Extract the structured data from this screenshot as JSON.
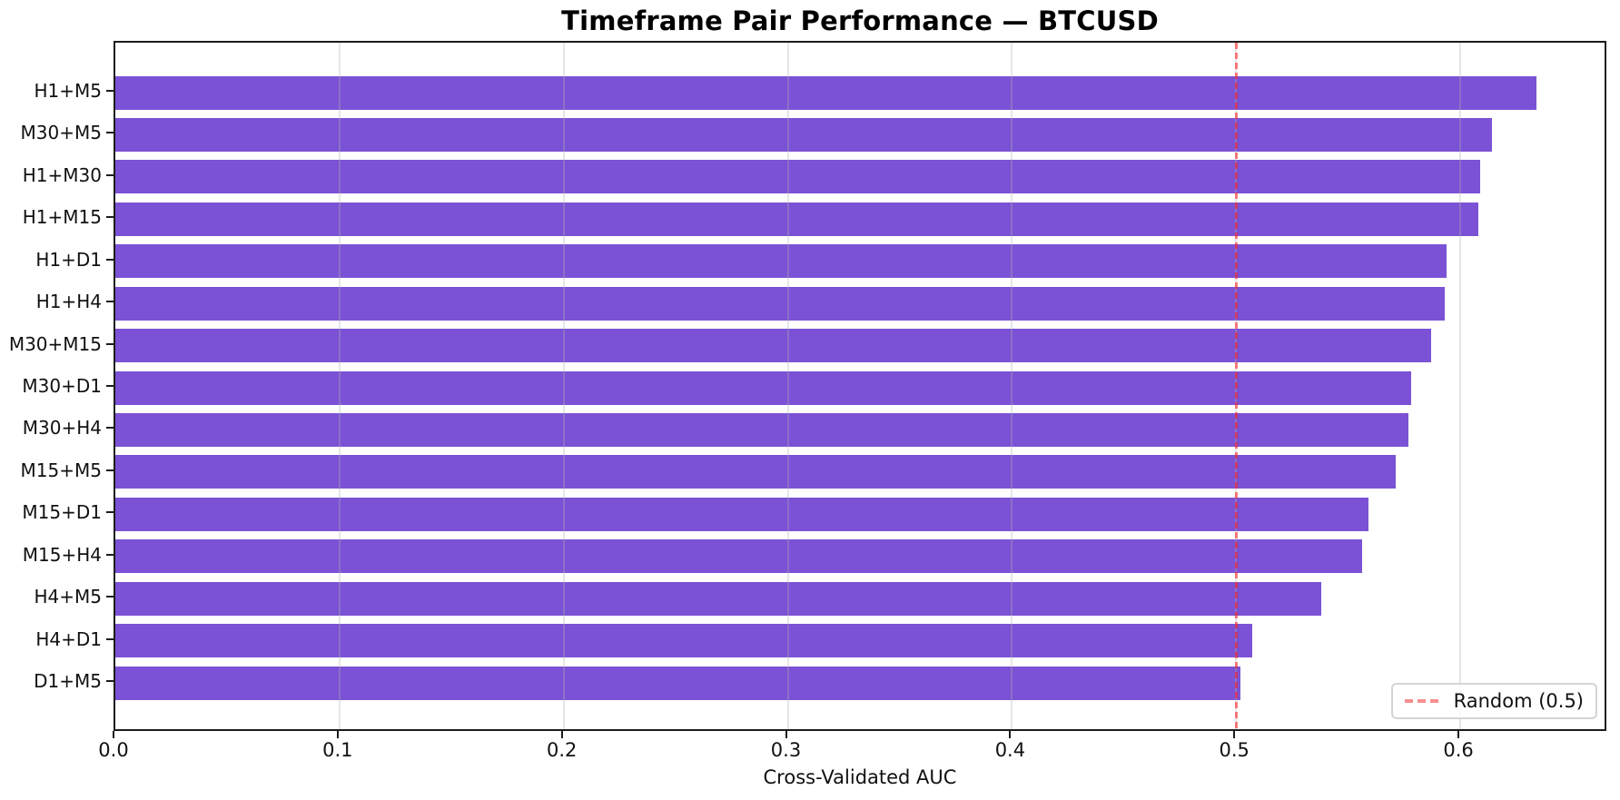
{
  "chart_data": {
    "type": "bar",
    "orientation": "horizontal",
    "title": "Timeframe Pair Performance — BTCUSD",
    "xlabel": "Cross-Validated AUC",
    "ylabel": "",
    "categories": [
      "H1+M5",
      "M30+M5",
      "H1+M30",
      "H1+M15",
      "H1+D1",
      "H1+H4",
      "M30+M15",
      "M30+D1",
      "M30+H4",
      "M15+M5",
      "M15+D1",
      "M15+H4",
      "H4+M5",
      "H4+D1",
      "D1+M5"
    ],
    "values": [
      0.634,
      0.614,
      0.609,
      0.608,
      0.594,
      0.593,
      0.587,
      0.578,
      0.577,
      0.571,
      0.559,
      0.556,
      0.538,
      0.507,
      0.502
    ],
    "xlim": [
      0,
      0.666
    ],
    "xticks": [
      0,
      0.1,
      0.2,
      0.3,
      0.4,
      0.5,
      0.6
    ],
    "grid": true,
    "bar_color": "#7B52D5",
    "reference_line": {
      "value": 0.5,
      "label": "Random (0.5)",
      "style": "dashed",
      "color": "#FF8080"
    },
    "legend_position": "lower right"
  }
}
